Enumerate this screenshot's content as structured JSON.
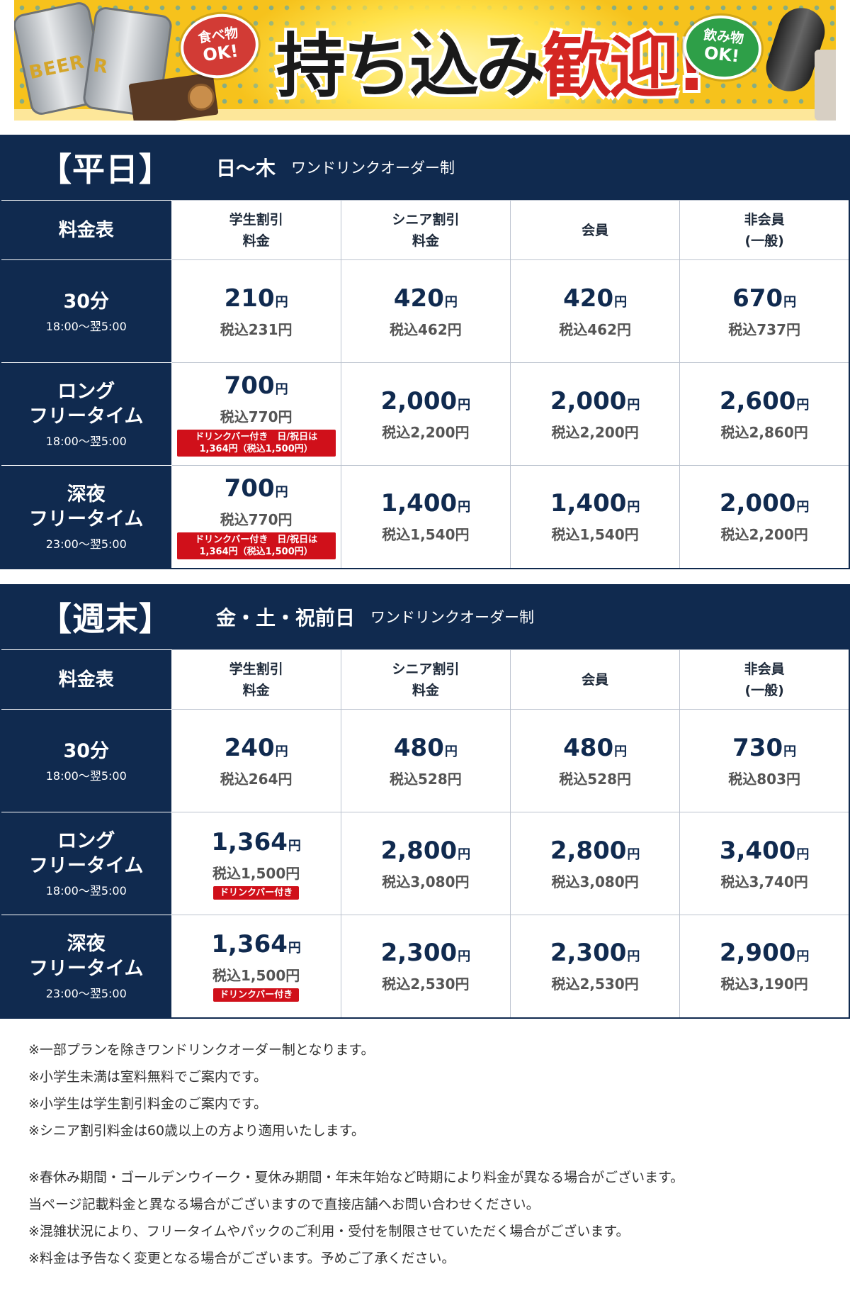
{
  "banner": {
    "headline_black": "持ち込み",
    "headline_red": "歓迎!",
    "food_bubble": {
      "line1": "食べ物",
      "line2": "OK!"
    },
    "drink_bubble": {
      "line1": "飲み物",
      "line2": "OK!"
    },
    "can_label_1": "BEER",
    "can_label_2": "R",
    "colors": {
      "background": "#f6c21c",
      "food_bubble": "#d23b35",
      "drink_bubble": "#2e9f48",
      "accent_red": "#d42622"
    }
  },
  "colors": {
    "navy": "#102a4f",
    "badge_red": "#d0101a"
  },
  "sections": [
    {
      "title": "【平日】",
      "days": "日〜木",
      "note": "ワンドリンクオーダー制",
      "corner_label": "料金表",
      "columns": [
        {
          "line1": "学生割引",
          "line2": "料金"
        },
        {
          "line1": "シニア割引",
          "line2": "料金"
        },
        {
          "line1": "会員",
          "line2": ""
        },
        {
          "line1": "非会員",
          "line2": "(一般)"
        }
      ],
      "rows": [
        {
          "name_line1": "30分",
          "name_line2": "",
          "time": "18:00〜翌5:00",
          "cells": [
            {
              "price": "210",
              "unit": "円",
              "tax": "税込231円"
            },
            {
              "price": "420",
              "unit": "円",
              "tax": "税込462円"
            },
            {
              "price": "420",
              "unit": "円",
              "tax": "税込462円"
            },
            {
              "price": "670",
              "unit": "円",
              "tax": "税込737円"
            }
          ]
        },
        {
          "name_line1": "ロング",
          "name_line2": "フリータイム",
          "time": "18:00〜翌5:00",
          "cells": [
            {
              "price": "700",
              "unit": "円",
              "tax": "税込770円",
              "badge_line1": "ドリンクバー付き　日/祝日は",
              "badge_line2": "1,364円（税込1,500円）"
            },
            {
              "price": "2,000",
              "unit": "円",
              "tax": "税込2,200円"
            },
            {
              "price": "2,000",
              "unit": "円",
              "tax": "税込2,200円"
            },
            {
              "price": "2,600",
              "unit": "円",
              "tax": "税込2,860円"
            }
          ]
        },
        {
          "name_line1": "深夜",
          "name_line2": "フリータイム",
          "time": "23:00〜翌5:00",
          "cells": [
            {
              "price": "700",
              "unit": "円",
              "tax": "税込770円",
              "badge_line1": "ドリンクバー付き　日/祝日は",
              "badge_line2": "1,364円（税込1,500円）"
            },
            {
              "price": "1,400",
              "unit": "円",
              "tax": "税込1,540円"
            },
            {
              "price": "1,400",
              "unit": "円",
              "tax": "税込1,540円"
            },
            {
              "price": "2,000",
              "unit": "円",
              "tax": "税込2,200円"
            }
          ]
        }
      ]
    },
    {
      "title": "【週末】",
      "days": "金・土・祝前日",
      "note": "ワンドリンクオーダー制",
      "corner_label": "料金表",
      "columns": [
        {
          "line1": "学生割引",
          "line2": "料金"
        },
        {
          "line1": "シニア割引",
          "line2": "料金"
        },
        {
          "line1": "会員",
          "line2": ""
        },
        {
          "line1": "非会員",
          "line2": "(一般)"
        }
      ],
      "rows": [
        {
          "name_line1": "30分",
          "name_line2": "",
          "time": "18:00〜翌5:00",
          "cells": [
            {
              "price": "240",
              "unit": "円",
              "tax": "税込264円"
            },
            {
              "price": "480",
              "unit": "円",
              "tax": "税込528円"
            },
            {
              "price": "480",
              "unit": "円",
              "tax": "税込528円"
            },
            {
              "price": "730",
              "unit": "円",
              "tax": "税込803円"
            }
          ]
        },
        {
          "name_line1": "ロング",
          "name_line2": "フリータイム",
          "time": "18:00〜翌5:00",
          "cells": [
            {
              "price": "1,364",
              "unit": "円",
              "tax": "税込1,500円",
              "badge_line1": "ドリンクバー付き",
              "badge_line2": ""
            },
            {
              "price": "2,800",
              "unit": "円",
              "tax": "税込3,080円"
            },
            {
              "price": "2,800",
              "unit": "円",
              "tax": "税込3,080円"
            },
            {
              "price": "3,400",
              "unit": "円",
              "tax": "税込3,740円"
            }
          ]
        },
        {
          "name_line1": "深夜",
          "name_line2": "フリータイム",
          "time": "23:00〜翌5:00",
          "cells": [
            {
              "price": "1,364",
              "unit": "円",
              "tax": "税込1,500円",
              "badge_line1": "ドリンクバー付き",
              "badge_line2": ""
            },
            {
              "price": "2,300",
              "unit": "円",
              "tax": "税込2,530円"
            },
            {
              "price": "2,300",
              "unit": "円",
              "tax": "税込2,530円"
            },
            {
              "price": "2,900",
              "unit": "円",
              "tax": "税込3,190円"
            }
          ]
        }
      ]
    }
  ],
  "notes_group1": [
    "※一部プランを除きワンドリンクオーダー制となります。",
    "※小学生未満は室料無料でご案内です。",
    "※小学生は学生割引料金のご案内です。",
    "※シニア割引料金は60歳以上の方より適用いたします。"
  ],
  "notes_group2": [
    "※春休み期間・ゴールデンウイーク・夏休み期間・年末年始など時期により料金が異なる場合がございます。",
    "当ページ記載料金と異なる場合がございますので直接店舗へお問い合わせください。",
    "※混雑状況により、フリータイムやパックのご利用・受付を制限させていただく場合がございます。",
    "※料金は予告なく変更となる場合がございます。予めご了承ください。"
  ]
}
